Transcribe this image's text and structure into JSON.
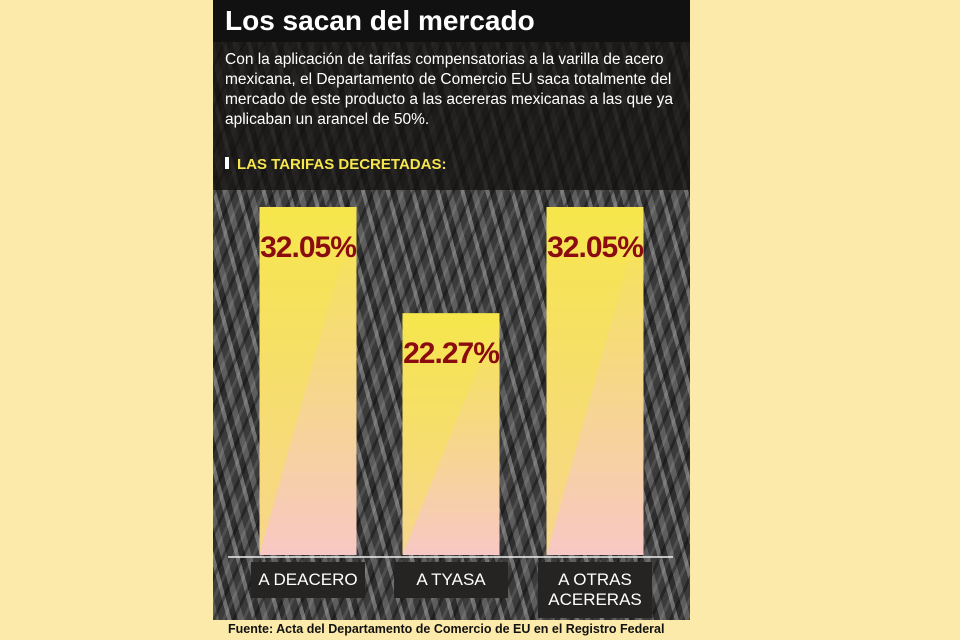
{
  "chart_data": {
    "type": "bar",
    "title": "Los sacan del mercado",
    "subtitle": "Con la aplicación de tarifas compensatorias a la varilla de acero mexicana, el Departamento de Comercio EU saca totalmente del mercado de este producto a las acereras mexicanas a las que ya aplicaban un arancel de 50%.",
    "heading": "LAS TARIFAS DECRETADAS:",
    "categories": [
      "A DEACERO",
      "A TYASA",
      "A OTRAS ACERERAS"
    ],
    "values": [
      32.05,
      22.27,
      32.05
    ],
    "value_labels": [
      "32.05%",
      "22.27%",
      "32.05%"
    ],
    "color": "#f6e64c",
    "source": "Fuente: Acta del Departamento de Comercio de EU en el Registro Federal"
  }
}
